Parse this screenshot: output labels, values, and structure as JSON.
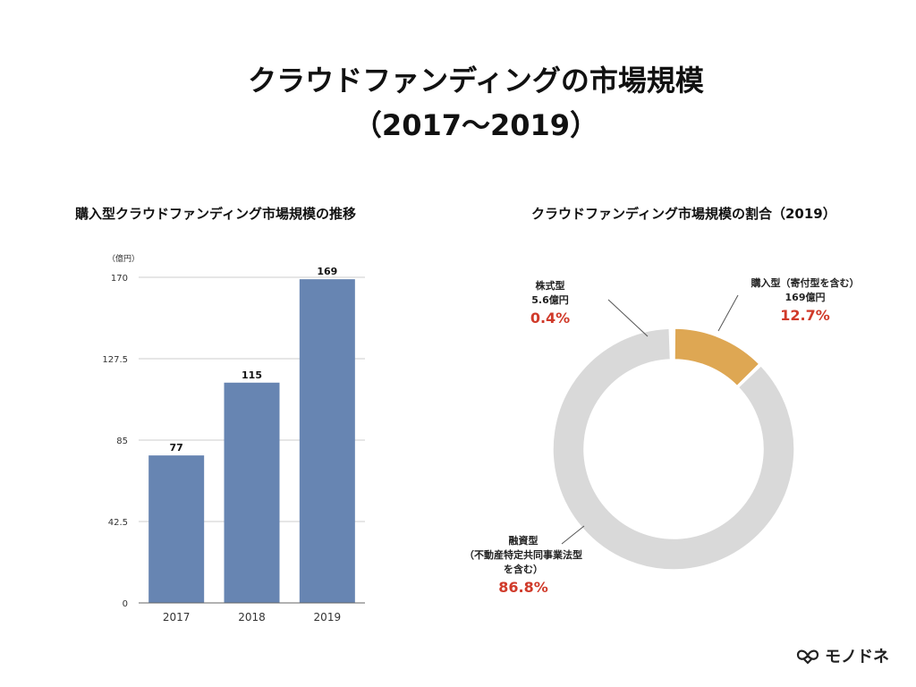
{
  "title": "クラウドファンディングの市場規模",
  "subtitle": "（2017〜2019）",
  "brand": {
    "name": "モノドネ",
    "icon": "infinity-heart-logo-icon"
  },
  "chart_data": [
    {
      "type": "bar",
      "title": "購入型クラウドファンディング市場規模の推移",
      "unit": "（億円）",
      "categories": [
        "2017",
        "2018",
        "2019"
      ],
      "values": [
        77,
        115,
        169
      ],
      "data_labels": [
        "77",
        "115",
        "169"
      ],
      "yticks": [
        "0",
        "42.5",
        "85",
        "127.5",
        "170"
      ],
      "ylim": [
        0,
        170
      ],
      "grid": true,
      "colors": {
        "bar": "#6785b2",
        "grid": "#cccccc",
        "axis": "#666666"
      }
    },
    {
      "type": "pie",
      "title": "クラウドファンディング市場規模の割合（2019）",
      "donut": true,
      "slices": [
        {
          "lines": [
            "購入型（寄付型を含む）",
            "169億円"
          ],
          "percent_label": "12.7%",
          "value": 12.7,
          "color": "#dea753"
        },
        {
          "lines": [
            "融資型",
            "（不動産特定共同事業法型",
            "を含む）"
          ],
          "percent_label": "86.8%",
          "value": 86.8,
          "color": "#d9d9d9"
        },
        {
          "lines": [
            "株式型",
            "5.6億円"
          ],
          "percent_label": "0.4%",
          "value": 0.4,
          "color": "#d9d9d9"
        }
      ],
      "colors": {
        "percent": "#d03a2a",
        "leader": "#555555"
      }
    }
  ]
}
